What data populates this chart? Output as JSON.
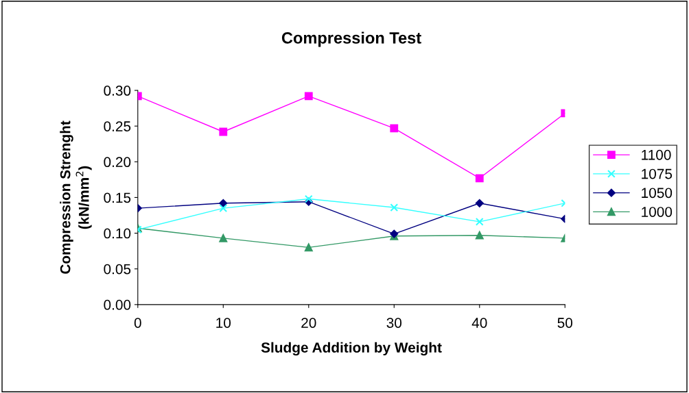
{
  "chart_data": {
    "type": "line",
    "title": "Compression Test",
    "xlabel": "Sludge Addition by Weight",
    "ylabel": "Compression Strenght\n(kN/mm$^{2}$)",
    "x": [
      0,
      10,
      20,
      30,
      40,
      50
    ],
    "xlim": [
      0,
      50
    ],
    "xticks": [
      0,
      10,
      20,
      30,
      40,
      50
    ],
    "ylim": [
      0,
      0.3
    ],
    "yticks": [
      {
        "value": 0,
        "label": "0.00"
      },
      {
        "value": 0.05,
        "label": "0.05"
      },
      {
        "value": 0.1,
        "label": "0.10"
      },
      {
        "value": 0.15,
        "label": "0.15"
      },
      {
        "value": 0.2,
        "label": "0.20"
      },
      {
        "value": 0.25,
        "label": "0.25"
      },
      {
        "value": 0.3,
        "label": "0.30"
      }
    ],
    "grid": false,
    "legend": "right",
    "line_style": "solid",
    "series": [
      {
        "name": "1100",
        "color": "#ff00ff",
        "marker": "square",
        "values": [
          0.292,
          0.242,
          0.292,
          0.247,
          0.177,
          0.268
        ]
      },
      {
        "name": "1075",
        "color": "#33ffff",
        "marker": "cross",
        "values": [
          0.105,
          0.135,
          0.148,
          0.136,
          0.116,
          0.142
        ]
      },
      {
        "name": "1050",
        "color": "#000080",
        "marker": "diamond",
        "values": [
          0.135,
          0.142,
          0.144,
          0.099,
          0.142,
          0.12
        ]
      },
      {
        "name": "1000",
        "color": "#339966",
        "marker": "triangle",
        "values": [
          0.107,
          0.093,
          0.08,
          0.096,
          0.097,
          0.093
        ]
      }
    ]
  }
}
